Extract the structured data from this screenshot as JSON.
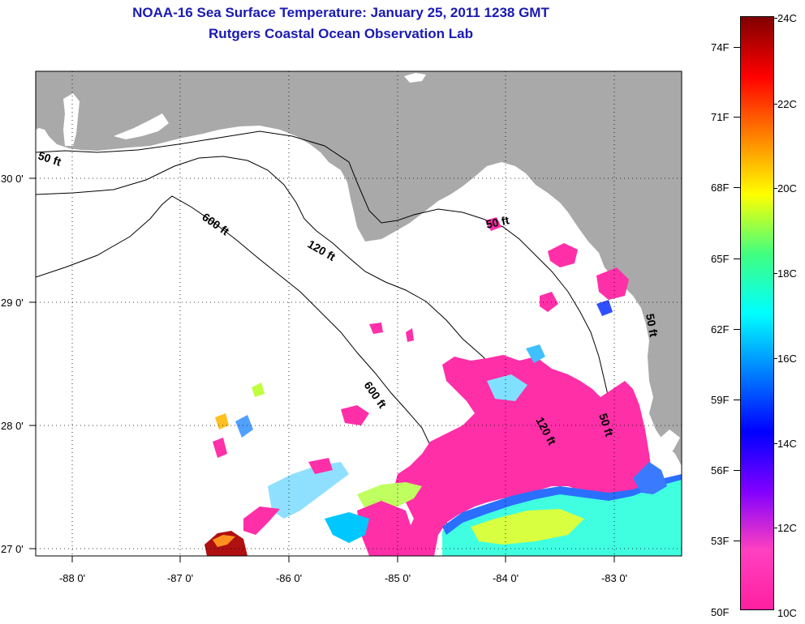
{
  "title": {
    "line1": "NOAA-16 Sea Surface Temperature:  January 25, 2011 1238 GMT",
    "line2": "Rutgers Coastal Ocean Observation Lab"
  },
  "map": {
    "colors": {
      "land": "#a9a9a9",
      "water": "#ffffff",
      "frame": "#000000",
      "grid": "#000000"
    },
    "lon_labels": [
      "-88 0'",
      "-87 0'",
      "-86 0'",
      "-85 0'",
      "-84 0'",
      "-83 0'"
    ],
    "lat_labels": [
      "30 0'",
      "29 0'",
      "28 0'",
      "27 0'"
    ],
    "contour_labels": [
      "50 ft",
      "600 ft",
      "120 ft",
      "50 ft",
      "600 ft",
      "120 ft",
      "50 ft",
      "50 ft"
    ]
  },
  "colorbar": {
    "celsius_labels": [
      "24C",
      "22C",
      "20C",
      "18C",
      "16C",
      "14C",
      "12C",
      "10C"
    ],
    "fahrenheit_labels": [
      "74F",
      "71F",
      "68F",
      "65F",
      "62F",
      "59F",
      "56F",
      "53F",
      "50F"
    ],
    "gradient_colors": [
      "#800000",
      "#ff0000",
      "#ff8000",
      "#ffff00",
      "#40ff80",
      "#00ffff",
      "#0080ff",
      "#0000ff",
      "#8000ff",
      "#ff40c0",
      "#ff20a0"
    ]
  }
}
